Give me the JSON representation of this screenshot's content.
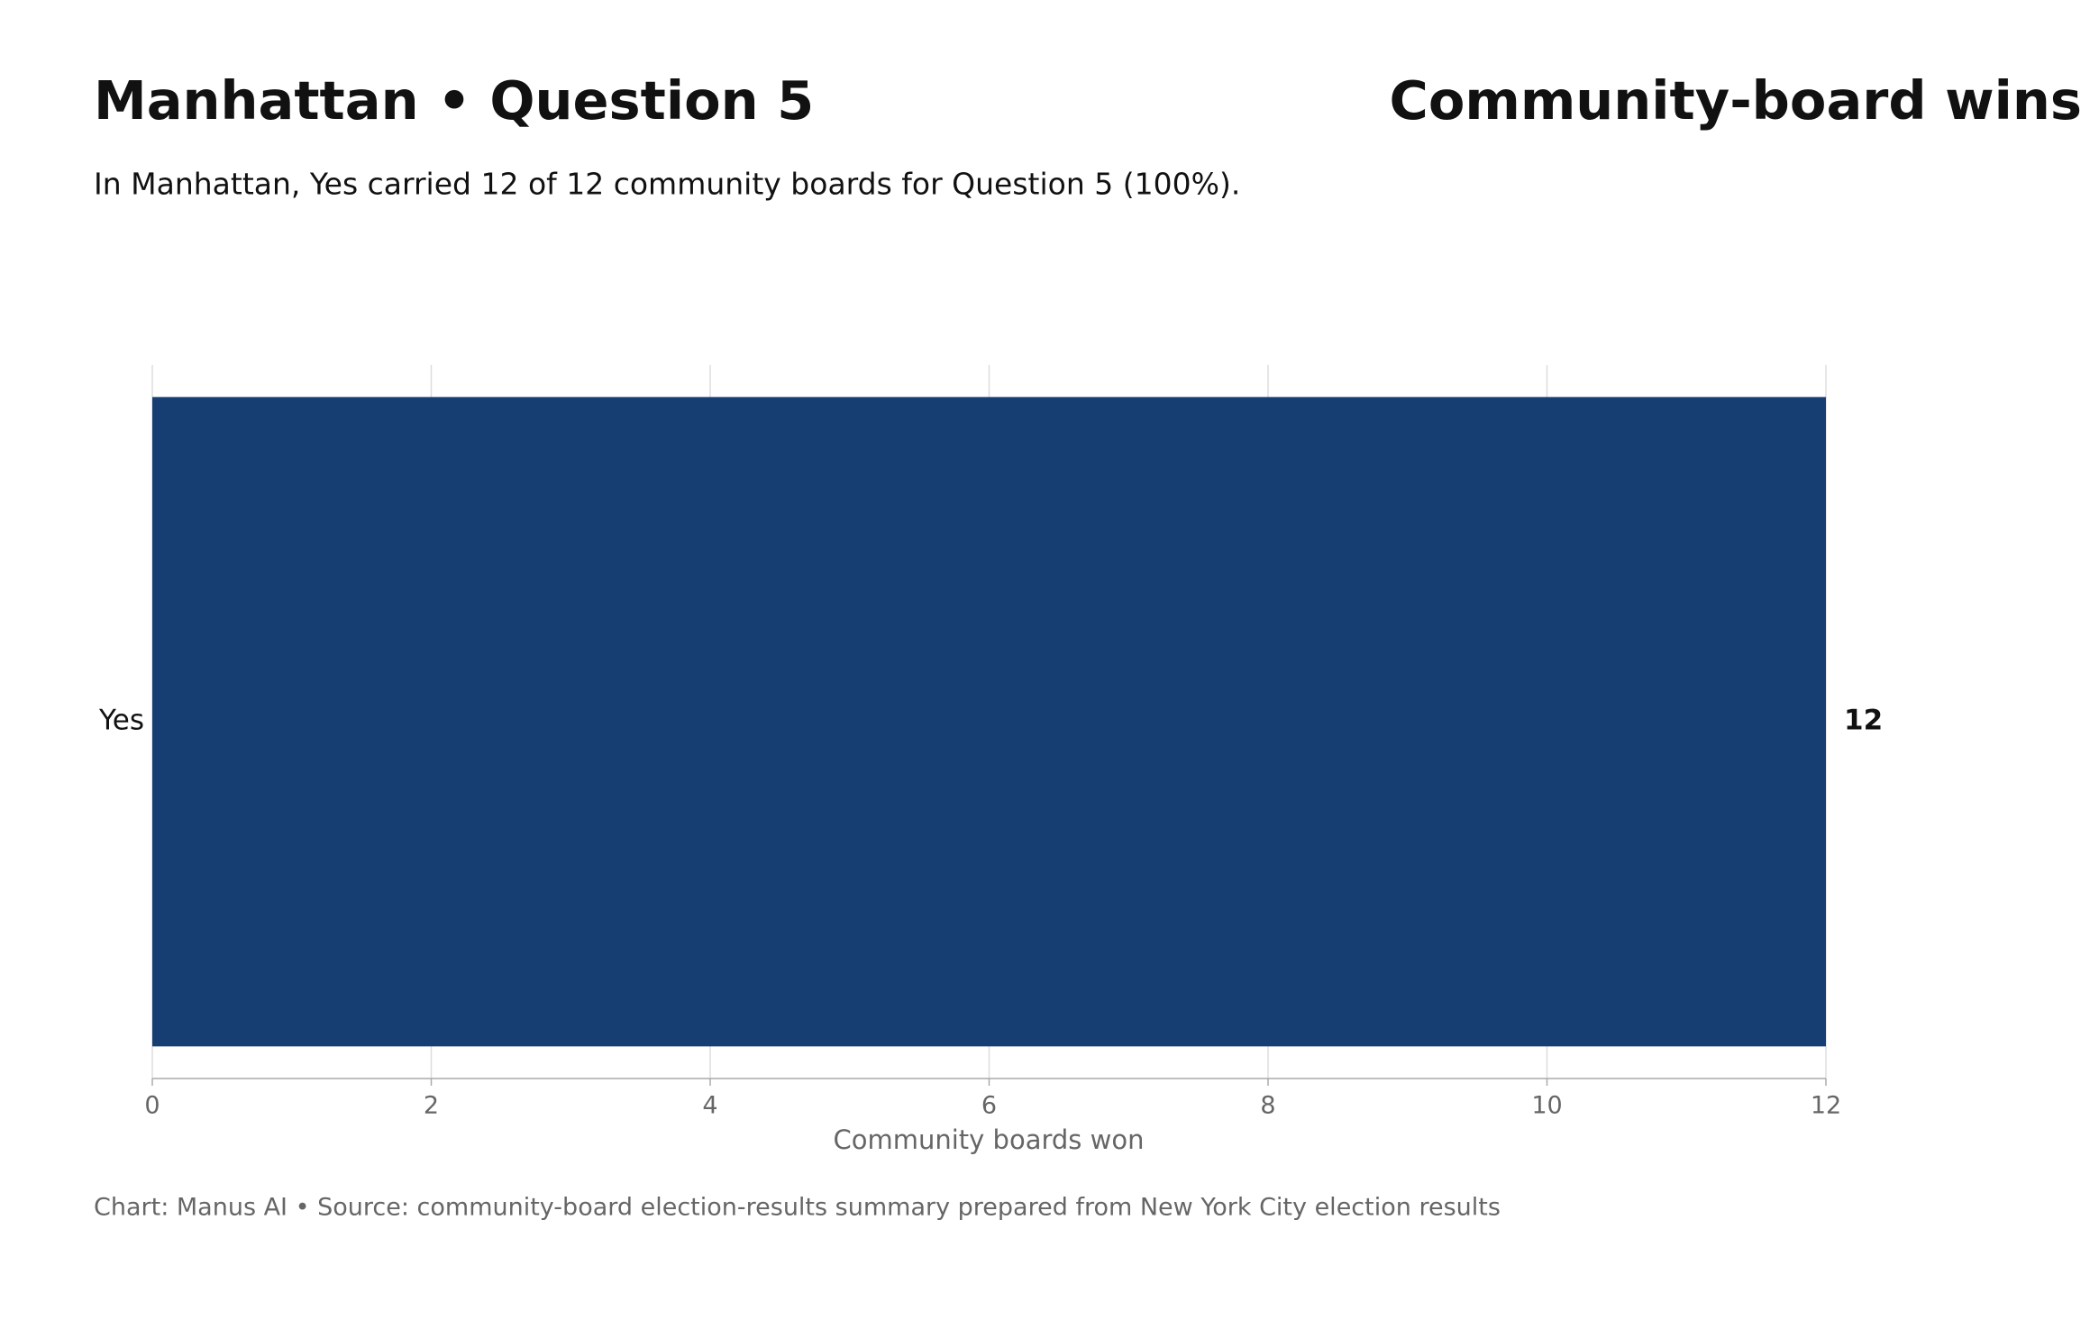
{
  "chart_data": {
    "type": "barh",
    "heading": "Manhattan • Question 5",
    "title": "Community-board wins",
    "subtitle": "In Manhattan, Yes carried 12 of 12 community boards for Question 5 (100%).",
    "categories": [
      "Yes"
    ],
    "values": [
      12
    ],
    "color": "#173e73",
    "xlim": [
      0,
      12
    ],
    "xticks": [
      0,
      2,
      4,
      6,
      8,
      10,
      12
    ],
    "xlabel": "Community boards won",
    "grid": true,
    "footer": "Chart: Manus AI • Source: community-board election-results summary prepared from New York City election results"
  }
}
